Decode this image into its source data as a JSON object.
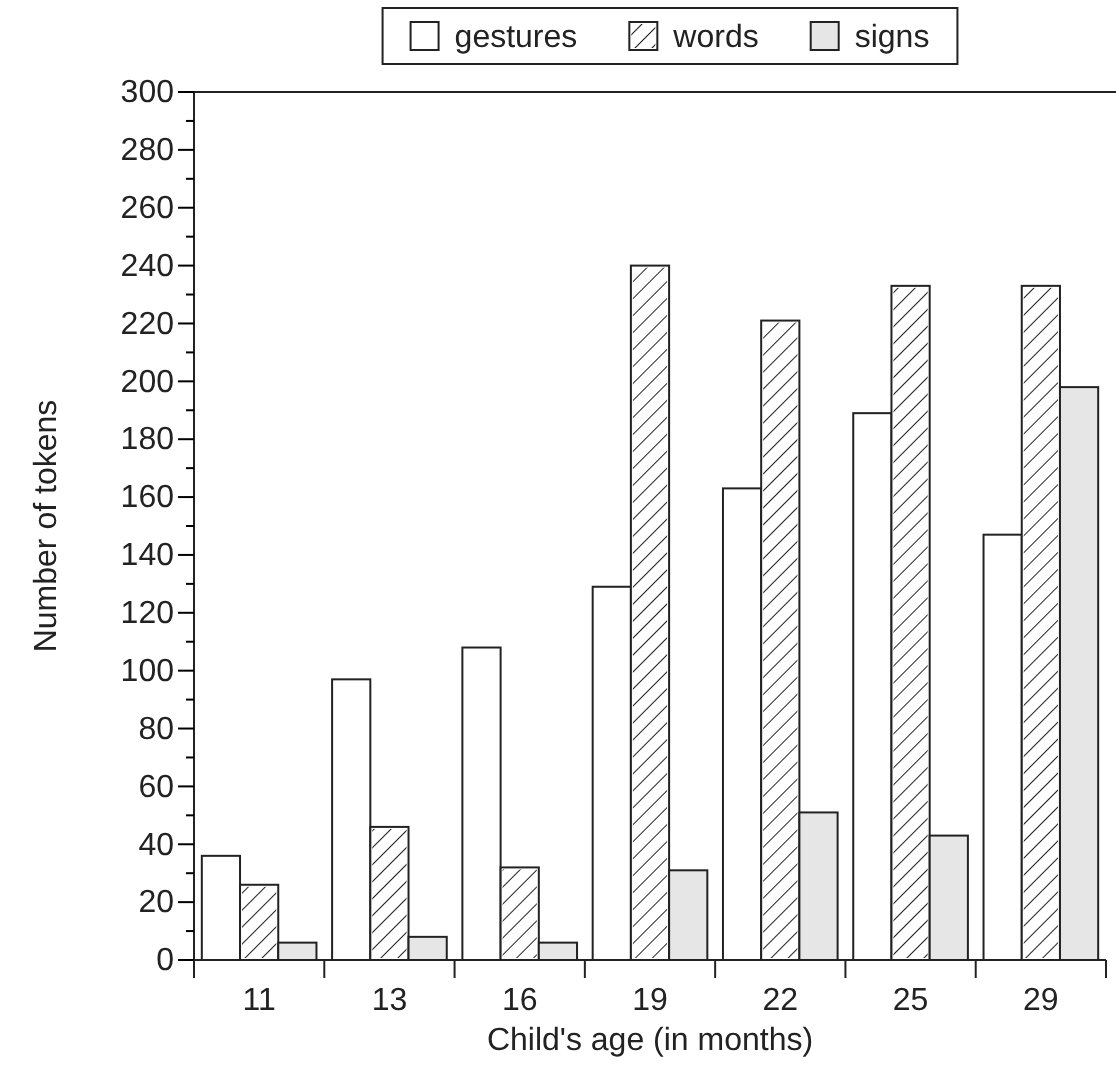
{
  "chart_data": {
    "type": "bar",
    "xlabel": "Child's age (in months)",
    "ylabel": "Number of tokens",
    "categories": [
      "11",
      "13",
      "16",
      "19",
      "22",
      "25",
      "29"
    ],
    "series": [
      {
        "name": "gestures",
        "color": "#ffffff",
        "values": [
          36,
          97,
          108,
          129,
          163,
          189,
          147
        ]
      },
      {
        "name": "words",
        "color": "#ffffff",
        "values": [
          26,
          46,
          32,
          240,
          221,
          233,
          233
        ]
      },
      {
        "name": "signs",
        "color": "#e6e6e6",
        "values": [
          6,
          8,
          6,
          31,
          51,
          43,
          198
        ]
      }
    ],
    "ylim": [
      0,
      300
    ],
    "yticks": [
      0,
      {
        "value": 10,
        "label": null
      },
      20,
      {
        "value": 30,
        "label": null
      },
      40,
      {
        "value": 50,
        "label": null
      },
      60,
      {
        "value": 70,
        "label": null
      },
      80,
      {
        "value": 90,
        "label": null
      },
      100,
      {
        "value": 110,
        "label": null
      },
      120,
      {
        "value": 130,
        "label": null
      },
      140,
      {
        "value": 150,
        "label": null
      },
      160,
      {
        "value": 170,
        "label": null
      },
      180,
      {
        "value": 190,
        "label": null
      },
      200,
      {
        "value": 210,
        "label": null
      },
      220,
      {
        "value": 230,
        "label": null
      },
      240,
      {
        "value": 250,
        "label": null
      },
      260,
      {
        "value": 270,
        "label": null
      },
      280,
      {
        "value": 290,
        "label": null
      },
      300
    ],
    "grid": false,
    "legend": "top"
  }
}
